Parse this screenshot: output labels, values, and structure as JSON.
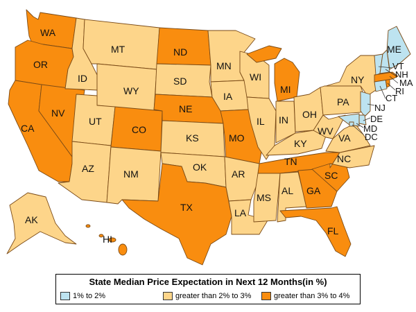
{
  "legend": {
    "title": "State Median Price Expectation in Next 12 Months(in %)",
    "items": [
      {
        "label": "1% to 2%",
        "color": "#bde3f0"
      },
      {
        "label": "greater than 2% to 3%",
        "color": "#fdd58a"
      },
      {
        "label": "greater than 3% to 4%",
        "color": "#f98d0f"
      }
    ]
  },
  "colors": {
    "low": "#bde3f0",
    "mid": "#fdd58a",
    "high": "#f98d0f",
    "border": "#7a4a16"
  },
  "states": {
    "WA": "greater than 3% to 4%",
    "OR": "greater than 3% to 4%",
    "CA": "greater than 3% to 4%",
    "NV": "greater than 3% to 4%",
    "ID": "greater than 2% to 3%",
    "MT": "greater than 2% to 3%",
    "WY": "greater than 2% to 3%",
    "UT": "greater than 2% to 3%",
    "AZ": "greater than 2% to 3%",
    "CO": "greater than 3% to 4%",
    "NM": "greater than 2% to 3%",
    "ND": "greater than 3% to 4%",
    "SD": "greater than 2% to 3%",
    "NE": "greater than 3% to 4%",
    "KS": "greater than 2% to 3%",
    "OK": "greater than 2% to 3%",
    "TX": "greater than 3% to 4%",
    "MN": "greater than 2% to 3%",
    "IA": "greater than 2% to 3%",
    "MO": "greater than 3% to 4%",
    "AR": "greater than 2% to 3%",
    "LA": "greater than 2% to 3%",
    "WI": "greater than 2% to 3%",
    "IL": "greater than 2% to 3%",
    "MI": "greater than 3% to 4%",
    "IN": "greater than 2% to 3%",
    "OH": "greater than 2% to 3%",
    "KY": "greater than 2% to 3%",
    "TN": "greater than 3% to 4%",
    "MS": "greater than 2% to 3%",
    "AL": "greater than 2% to 3%",
    "GA": "greater than 3% to 4%",
    "FL": "greater than 3% to 4%",
    "SC": "greater than 3% to 4%",
    "NC": "greater than 2% to 3%",
    "VA": "greater than 2% to 3%",
    "WV": "greater than 2% to 3%",
    "PA": "greater than 2% to 3%",
    "NY": "greater than 2% to 3%",
    "VT": "1% to 2%",
    "NH": "1% to 2%",
    "ME": "1% to 2%",
    "MA": "greater than 3% to 4%",
    "RI": "greater than 3% to 4%",
    "CT": "1% to 2%",
    "NJ": "1% to 2%",
    "DE": "1% to 2%",
    "MD": "1% to 2%",
    "DC": "1% to 2%",
    "AK": "greater than 2% to 3%",
    "HI": "greater than 3% to 4%"
  }
}
